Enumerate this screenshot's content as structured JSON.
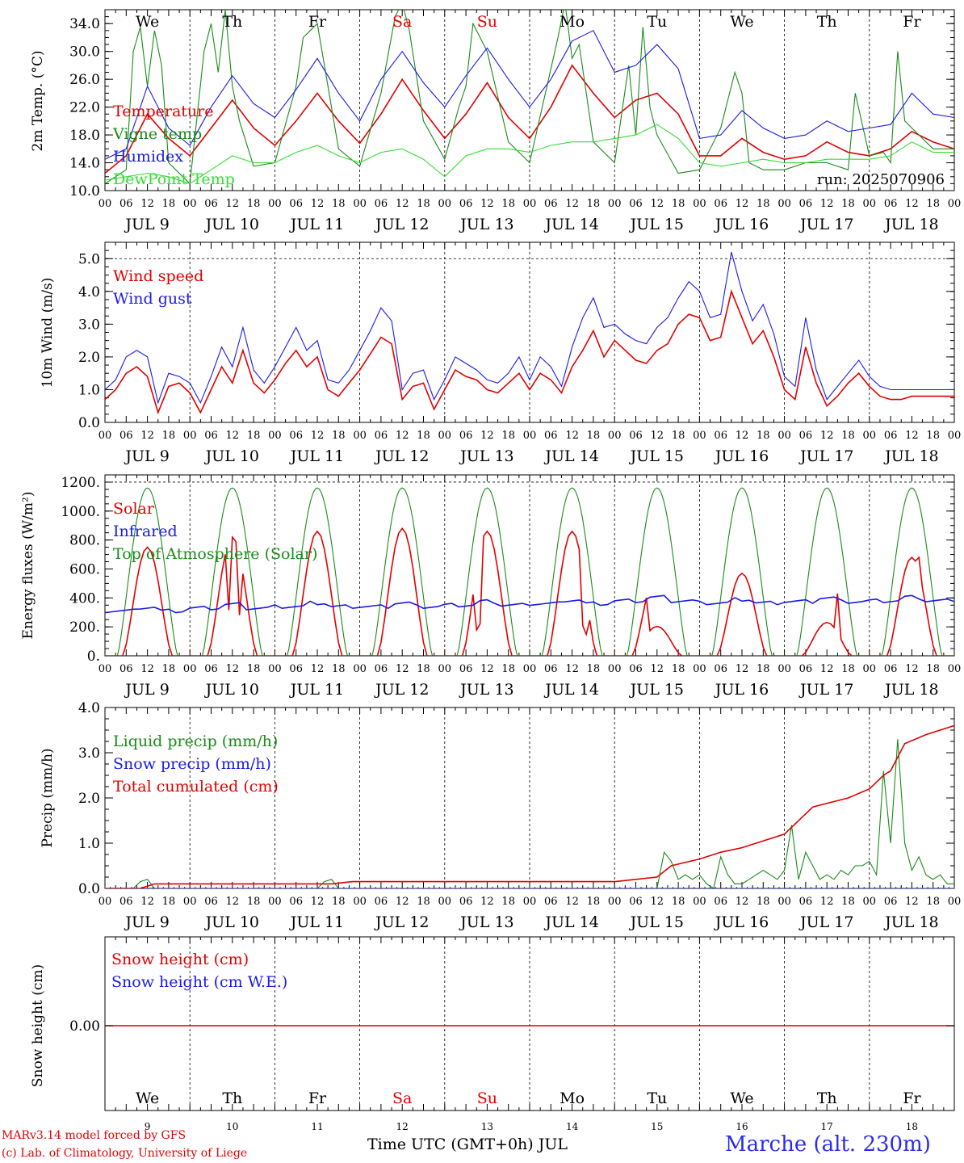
{
  "days": [
    {
      "dow": "We",
      "date": "JUL  9",
      "num": "9",
      "weekend": false
    },
    {
      "dow": "Th",
      "date": "JUL 10",
      "num": "10",
      "weekend": false
    },
    {
      "dow": "Fr",
      "date": "JUL 11",
      "num": "11",
      "weekend": false
    },
    {
      "dow": "Sa",
      "date": "JUL 12",
      "num": "12",
      "weekend": true
    },
    {
      "dow": "Su",
      "date": "JUL 13",
      "num": "13",
      "weekend": true
    },
    {
      "dow": "Mo",
      "date": "JUL 14",
      "num": "14",
      "weekend": false
    },
    {
      "dow": "Tu",
      "date": "JUL 15",
      "num": "15",
      "weekend": false
    },
    {
      "dow": "We",
      "date": "JUL 16",
      "num": "16",
      "weekend": false
    },
    {
      "dow": "Th",
      "date": "JUL 17",
      "num": "17",
      "weekend": false
    },
    {
      "dow": "Fr",
      "date": "JUL 18",
      "num": "18",
      "weekend": false
    }
  ],
  "hour_ticks": [
    "00",
    "06",
    "12",
    "18"
  ],
  "hour_end": "00",
  "colors": {
    "red": "#e00000",
    "green": "#1a8a1a",
    "blue": "#1a1ae6",
    "lightgreen": "#33dd33",
    "weekend": "#e00000"
  },
  "footer": {
    "credit_line1": "MARv3.14 model forced by GFS",
    "credit_line2": "(c) Lab. of Climatology, University of Liege",
    "xlabel": "Time UTC (GMT+0h) JUL",
    "station": "Marche (alt. 230m)"
  },
  "chart_data": [
    {
      "type": "line",
      "ylabel": "2m Temp. (°C)",
      "ylim": [
        10,
        36
      ],
      "yticks": [
        "10.0",
        "14.0",
        "18.0",
        "22.0",
        "26.0",
        "30.0",
        "34.0"
      ],
      "annotation": "run: 2025070906",
      "series": [
        {
          "name": "Temperature",
          "color": "red",
          "x": [
            0,
            6,
            12,
            18,
            24,
            30,
            36,
            42,
            48,
            54,
            60,
            66,
            72,
            78,
            84,
            90,
            96,
            102,
            108,
            114,
            120,
            126,
            132,
            138,
            144,
            150,
            156,
            162,
            168,
            174,
            180,
            186,
            192,
            198,
            204,
            210,
            216,
            222,
            228,
            234,
            240
          ],
          "values": [
            12.5,
            15,
            21,
            17.5,
            15,
            19,
            23,
            19,
            16.5,
            20,
            24,
            20,
            16.8,
            21,
            26,
            21.5,
            17.5,
            21,
            25.5,
            20.5,
            17.5,
            22,
            28,
            24,
            20.5,
            23,
            24,
            21,
            15,
            15,
            17.5,
            15.5,
            14.5,
            15,
            17,
            15.5,
            15,
            16,
            18.5,
            17,
            16
          ]
        },
        {
          "name": "Vigne temp",
          "color": "green",
          "x": [
            0,
            6,
            8,
            10,
            12,
            14,
            16,
            18,
            24,
            28,
            30,
            32,
            34,
            36,
            38,
            42,
            48,
            54,
            56,
            60,
            62,
            66,
            72,
            78,
            82,
            84,
            86,
            90,
            96,
            100,
            102,
            104,
            108,
            114,
            120,
            128,
            130,
            132,
            134,
            138,
            144,
            148,
            150,
            152,
            154,
            156,
            162,
            168,
            174,
            178,
            180,
            182,
            186,
            192,
            198,
            204,
            210,
            212,
            216,
            220,
            222,
            224,
            226,
            228,
            234,
            240
          ],
          "values": [
            11,
            13,
            30,
            33.5,
            25,
            33,
            28,
            14,
            11,
            30,
            34,
            27,
            36,
            25,
            20,
            13.5,
            14,
            25,
            32,
            34,
            28,
            16,
            13.5,
            24,
            35,
            37,
            33,
            20,
            14.5,
            22,
            25,
            34,
            30,
            17,
            14,
            32,
            37,
            29,
            31,
            17,
            14,
            28,
            18,
            33.5,
            22,
            18,
            12.5,
            13,
            19,
            27,
            24,
            14,
            13,
            13,
            14,
            14,
            13,
            24,
            15,
            15.5,
            14,
            30,
            20,
            19,
            16,
            16
          ]
        },
        {
          "name": "Humidex",
          "color": "blue",
          "x": [
            0,
            6,
            12,
            18,
            24,
            30,
            36,
            42,
            48,
            54,
            60,
            66,
            72,
            78,
            84,
            90,
            96,
            102,
            108,
            114,
            120,
            126,
            132,
            138,
            144,
            150,
            156,
            162,
            168,
            174,
            180,
            186,
            192,
            198,
            204,
            210,
            216,
            222,
            228,
            234,
            240
          ],
          "values": [
            14.5,
            16,
            25,
            19,
            16.5,
            22,
            26.5,
            22.5,
            20.5,
            24.5,
            29,
            24,
            20,
            26,
            30,
            25.5,
            22,
            26.5,
            30.5,
            26,
            22,
            26,
            31.5,
            33,
            27,
            28,
            31,
            27.5,
            17.5,
            18,
            21.5,
            19,
            17.5,
            18,
            20,
            18.5,
            19,
            19.5,
            24,
            21,
            20.5
          ]
        },
        {
          "name": "DewPoint Temp",
          "color": "lightgreen",
          "x": [
            0,
            6,
            12,
            18,
            24,
            30,
            36,
            42,
            48,
            54,
            60,
            66,
            72,
            78,
            84,
            90,
            96,
            102,
            108,
            114,
            120,
            126,
            132,
            138,
            144,
            150,
            156,
            162,
            168,
            174,
            180,
            186,
            192,
            198,
            204,
            210,
            216,
            222,
            228,
            234,
            240
          ],
          "values": [
            11.5,
            12,
            12.5,
            12,
            11,
            13,
            15,
            14,
            14,
            15.5,
            16.5,
            15,
            14,
            15.5,
            16,
            14.5,
            12,
            15,
            16,
            16,
            15.5,
            16.5,
            17,
            17,
            17.5,
            18,
            19.5,
            17.5,
            14,
            13.5,
            14,
            14.5,
            14,
            14,
            14.5,
            14.5,
            14.5,
            15,
            17,
            15.5,
            15.5
          ]
        }
      ]
    },
    {
      "type": "line",
      "ylabel": "10m Wind (m/s)",
      "ylim": [
        0,
        5.5
      ],
      "yticks": [
        "0.0",
        "1.0",
        "2.0",
        "3.0",
        "4.0",
        "5.0"
      ],
      "series": [
        {
          "name": "Wind speed",
          "color": "red",
          "x": [
            0,
            3,
            6,
            9,
            12,
            15,
            18,
            21,
            24,
            27,
            30,
            33,
            36,
            39,
            42,
            45,
            48,
            51,
            54,
            57,
            60,
            63,
            66,
            69,
            72,
            75,
            78,
            81,
            84,
            87,
            90,
            93,
            96,
            99,
            102,
            105,
            108,
            111,
            114,
            117,
            120,
            123,
            126,
            129,
            132,
            135,
            138,
            141,
            144,
            147,
            150,
            153,
            156,
            159,
            162,
            165,
            168,
            171,
            174,
            177,
            180,
            183,
            186,
            189,
            192,
            195,
            198,
            201,
            204,
            207,
            210,
            213,
            216,
            219,
            222,
            225,
            228,
            231,
            234,
            237,
            240
          ],
          "values": [
            0.7,
            1,
            1.5,
            1.7,
            1.4,
            0.3,
            1.1,
            1.2,
            0.9,
            0.3,
            1,
            1.7,
            1.2,
            2.2,
            1.2,
            0.9,
            1.3,
            1.8,
            2.2,
            1.7,
            2,
            1,
            0.8,
            1.2,
            1.6,
            2.1,
            2.6,
            2.4,
            0.7,
            1.1,
            1.2,
            0.4,
            1.0,
            1.6,
            1.4,
            1.3,
            1.0,
            0.9,
            1.2,
            1.5,
            1.0,
            1.5,
            1.3,
            0.9,
            1.7,
            2.2,
            2.8,
            2,
            2.5,
            2.2,
            1.9,
            1.8,
            2.2,
            2.4,
            3.0,
            3.3,
            3.2,
            2.5,
            2.6,
            4.0,
            3.2,
            2.4,
            2.8,
            2.0,
            1.0,
            0.7,
            2.3,
            1.2,
            0.5,
            0.8,
            1.2,
            1.5,
            1.1,
            0.8,
            0.7,
            0.7,
            0.8,
            0.8,
            0.8,
            0.8,
            0.8
          ]
        },
        {
          "name": "Wind gust",
          "color": "blue",
          "x": [
            0,
            3,
            6,
            9,
            12,
            15,
            18,
            21,
            24,
            27,
            30,
            33,
            36,
            39,
            42,
            45,
            48,
            51,
            54,
            57,
            60,
            63,
            66,
            69,
            72,
            75,
            78,
            81,
            84,
            87,
            90,
            93,
            96,
            99,
            102,
            105,
            108,
            111,
            114,
            117,
            120,
            123,
            126,
            129,
            132,
            135,
            138,
            141,
            144,
            147,
            150,
            153,
            156,
            159,
            162,
            165,
            168,
            171,
            174,
            177,
            180,
            183,
            186,
            189,
            192,
            195,
            198,
            201,
            204,
            207,
            210,
            213,
            216,
            219,
            222,
            225,
            228,
            231,
            234,
            237,
            240
          ],
          "values": [
            1.0,
            1.3,
            2.0,
            2.2,
            2.0,
            0.6,
            1.5,
            1.4,
            1.2,
            0.6,
            1.4,
            2.3,
            1.7,
            2.9,
            1.6,
            1.2,
            1.7,
            2.3,
            2.9,
            2.2,
            2.5,
            1.3,
            1.2,
            1.6,
            2.2,
            2.8,
            3.5,
            3.1,
            1.0,
            1.5,
            1.6,
            0.7,
            1.3,
            2.0,
            1.8,
            1.6,
            1.3,
            1.2,
            1.5,
            2.0,
            1.3,
            2.0,
            1.7,
            1.1,
            2.3,
            3.2,
            3.8,
            2.9,
            3.0,
            2.7,
            2.5,
            2.4,
            2.9,
            3.2,
            3.8,
            4.3,
            4.0,
            3.2,
            3.3,
            5.2,
            4.0,
            3.1,
            3.6,
            2.7,
            1.4,
            1.1,
            3.2,
            1.6,
            0.7,
            1.1,
            1.5,
            1.9,
            1.4,
            1.1,
            1.0,
            1.0,
            1.0,
            1.0,
            1.0,
            1.0,
            1.0
          ]
        }
      ]
    },
    {
      "type": "line",
      "ylabel": "Energy fluxes (W/m²)",
      "ylim": [
        0,
        1200
      ],
      "yticks": [
        "0.",
        "200.",
        "400.",
        "600.",
        "800.",
        "1000.",
        "1200."
      ],
      "series": [
        {
          "name": "Solar",
          "color": "red",
          "peaks": [
            750,
            820,
            860,
            880,
            860,
            860,
            580,
            570,
            230,
            680
          ]
        },
        {
          "name": "Infrared",
          "color": "blue",
          "values_day": [
            310,
            330,
            340,
            340,
            350,
            360,
            380,
            365,
            375,
            380
          ]
        },
        {
          "name": "Top of Atmosphere (Solar)",
          "color": "green",
          "peak": 1160
        }
      ]
    },
    {
      "type": "line",
      "ylabel": "Precip (mm/h)",
      "ylim": [
        0,
        4
      ],
      "yticks": [
        "0.0",
        "1.0",
        "2.0",
        "3.0",
        "4.0"
      ],
      "series": [
        {
          "name": "Liquid precip (mm/h)",
          "color": "green",
          "x": [
            0,
            8,
            10,
            12,
            14,
            24,
            48,
            60,
            62,
            64,
            66,
            72,
            144,
            150,
            156,
            158,
            160,
            162,
            164,
            166,
            168,
            170,
            172,
            174,
            176,
            178,
            180,
            182,
            184,
            186,
            188,
            190,
            192,
            194,
            196,
            198,
            200,
            202,
            204,
            206,
            208,
            210,
            212,
            214,
            216,
            218,
            220,
            222,
            224,
            226,
            228,
            230,
            232,
            234,
            236,
            238,
            240
          ],
          "values": [
            0,
            0,
            0.15,
            0.2,
            0,
            0,
            0,
            0,
            0.15,
            0.2,
            0,
            0,
            0,
            0,
            0,
            0.8,
            0.6,
            0.2,
            0.3,
            0.2,
            0.3,
            0.1,
            0,
            0.7,
            0.3,
            0.1,
            0.1,
            0.2,
            0.3,
            0.4,
            0.3,
            0.2,
            0.4,
            1.4,
            0.2,
            0.8,
            0.5,
            0.2,
            0.3,
            0.2,
            0.4,
            0.3,
            0.5,
            0.5,
            0.6,
            0.3,
            2.6,
            1.0,
            3.3,
            1.0,
            0.4,
            0.7,
            0.3,
            0.2,
            0.3,
            0.1,
            0.1
          ]
        },
        {
          "name": "Snow precip (mm/h)",
          "color": "blue",
          "x": [
            0,
            240
          ],
          "values": [
            0,
            0
          ]
        },
        {
          "name": "Total cumulated (cm)",
          "color": "red",
          "x": [
            0,
            10,
            14,
            24,
            48,
            64,
            70,
            144,
            150,
            156,
            160,
            168,
            174,
            180,
            192,
            200,
            210,
            216,
            220,
            222,
            226,
            232,
            240
          ],
          "values": [
            0,
            0,
            0.1,
            0.1,
            0.1,
            0.1,
            0.15,
            0.15,
            0.2,
            0.25,
            0.5,
            0.65,
            0.8,
            0.9,
            1.2,
            1.8,
            2.0,
            2.2,
            2.5,
            2.6,
            3.2,
            3.4,
            3.6
          ]
        }
      ]
    },
    {
      "type": "line",
      "ylabel": "Snow height (cm)",
      "yticks": [
        "0.00"
      ],
      "series": [
        {
          "name": "Snow height (cm)",
          "color": "red",
          "x": [
            0,
            240
          ],
          "values": [
            0,
            0
          ]
        },
        {
          "name": "Snow height (cm W.E.)",
          "color": "blue",
          "x": [
            0,
            240
          ],
          "values": [
            0,
            0
          ]
        }
      ]
    }
  ]
}
